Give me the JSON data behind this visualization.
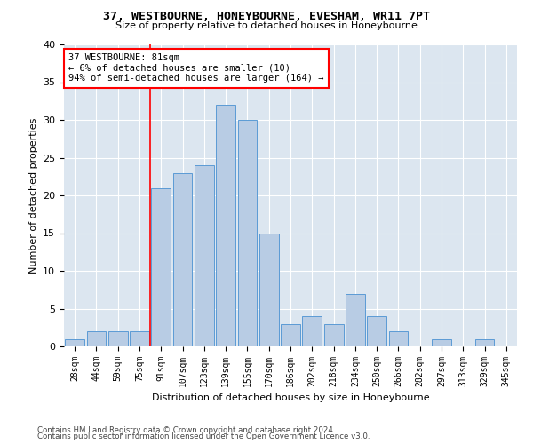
{
  "title": "37, WESTBOURNE, HONEYBOURNE, EVESHAM, WR11 7PT",
  "subtitle": "Size of property relative to detached houses in Honeybourne",
  "xlabel": "Distribution of detached houses by size in Honeybourne",
  "ylabel": "Number of detached properties",
  "categories": [
    "28sqm",
    "44sqm",
    "59sqm",
    "75sqm",
    "91sqm",
    "107sqm",
    "123sqm",
    "139sqm",
    "155sqm",
    "170sqm",
    "186sqm",
    "202sqm",
    "218sqm",
    "234sqm",
    "250sqm",
    "266sqm",
    "282sqm",
    "297sqm",
    "313sqm",
    "329sqm",
    "345sqm"
  ],
  "values": [
    1,
    2,
    2,
    2,
    21,
    23,
    24,
    32,
    30,
    15,
    3,
    4,
    3,
    7,
    4,
    2,
    0,
    1,
    0,
    1,
    0
  ],
  "bar_color": "#b8cce4",
  "bar_edge_color": "#5b9bd5",
  "annotation_title": "37 WESTBOURNE: 81sqm",
  "annotation_line1": "← 6% of detached houses are smaller (10)",
  "annotation_line2": "94% of semi-detached houses are larger (164) →",
  "ylim": [
    0,
    40
  ],
  "yticks": [
    0,
    5,
    10,
    15,
    20,
    25,
    30,
    35,
    40
  ],
  "bg_color": "#dce6f0",
  "grid_color": "#ffffff",
  "footer1": "Contains HM Land Registry data © Crown copyright and database right 2024.",
  "footer2": "Contains public sector information licensed under the Open Government Licence v3.0."
}
